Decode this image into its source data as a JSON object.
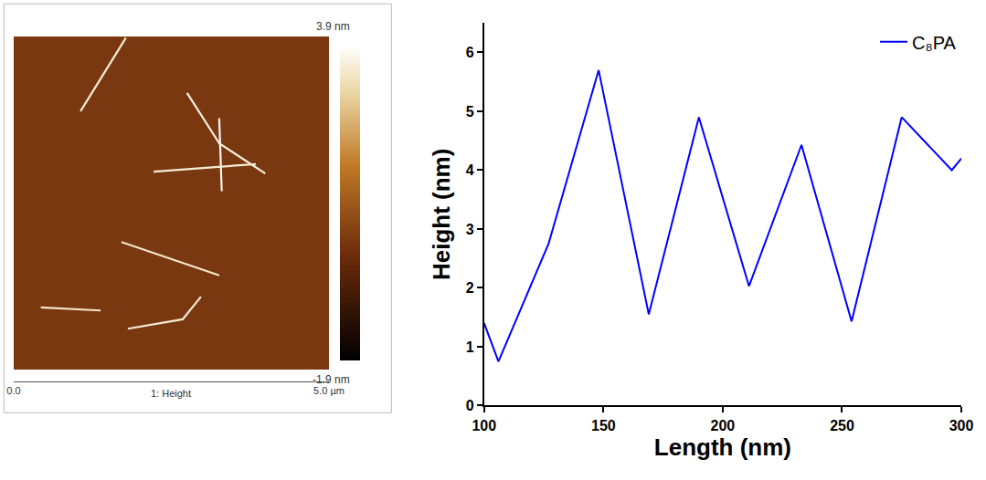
{
  "chart_data": [
    {
      "type": "image",
      "title": "1: Height",
      "xlim": [
        0,
        5.0
      ],
      "ylim": [
        0,
        5.3
      ],
      "xticks": [
        {
          "value": 0,
          "label": "0.0"
        },
        {
          "value": 5.0,
          "label": "5.0 µm"
        }
      ],
      "tick_labels": "x",
      "cells": [
        [
          0.3
        ]
      ],
      "colorbar": {
        "range": [
          -1.9,
          3.9
        ],
        "ticks": [
          {
            "value": 3.9,
            "label": "3.9 nm"
          },
          {
            "value": -1.9,
            "label": "-1.9 nm"
          }
        ]
      },
      "fibers": [
        {
          "x": [
            1.78,
            1.06
          ],
          "y": [
            5.28,
            4.11
          ],
          "height": 3.5
        },
        {
          "x": [
            2.75,
            3.26,
            3.99
          ],
          "y": [
            4.4,
            3.6,
            3.12
          ],
          "height": 3.6
        },
        {
          "x": [
            3.26,
            3.3
          ],
          "y": [
            4.0,
            2.84
          ],
          "height": 3.7
        },
        {
          "x": [
            2.22,
            3.84
          ],
          "y": [
            3.15,
            3.27
          ],
          "height": 3.5
        },
        {
          "x": [
            1.71,
            3.26
          ],
          "y": [
            2.03,
            1.5
          ],
          "height": 3.4
        },
        {
          "x": [
            1.81,
            2.68,
            2.97
          ],
          "y": [
            0.65,
            0.8,
            1.16
          ],
          "height": 3.5
        },
        {
          "x": [
            0.43,
            1.38
          ],
          "y": [
            0.99,
            0.94
          ],
          "height": 3.4
        }
      ]
    },
    {
      "type": "line",
      "xlabel": "Length (nm)",
      "ylabel": "Height (nm)",
      "x": [
        100,
        106,
        127,
        148,
        169,
        190,
        211,
        233,
        254,
        275,
        296,
        300
      ],
      "series": [
        {
          "name": "C₈PA",
          "color": "#0000ff",
          "values": [
            1.4,
            0.75,
            2.75,
            5.7,
            1.55,
            4.9,
            2.03,
            4.43,
            1.43,
            4.9,
            4.0,
            4.2
          ]
        }
      ],
      "xlim": [
        100,
        300
      ],
      "ylim": [
        0,
        6.5
      ],
      "xticks": [
        100,
        150,
        200,
        250,
        300
      ],
      "yticks": [
        0,
        1,
        2,
        3,
        4,
        5,
        6
      ],
      "legend": "upper right",
      "grid": false
    }
  ]
}
